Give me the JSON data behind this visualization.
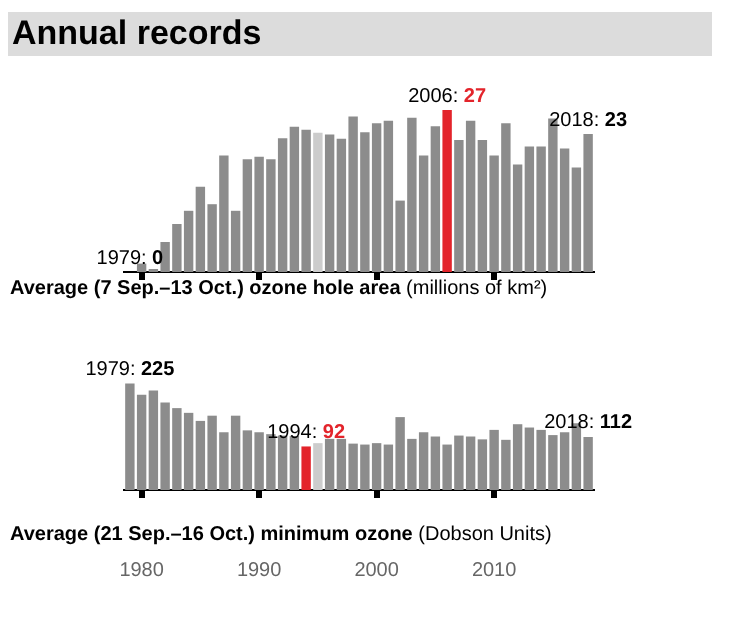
{
  "chart_data": [
    {
      "type": "bar",
      "title": "Annual records",
      "xlabel": "Average (7 Sep.–13 Oct.) ozone hole area (millions of km²)",
      "x": [
        1979,
        1980,
        1981,
        1982,
        1983,
        1984,
        1985,
        1986,
        1987,
        1988,
        1989,
        1990,
        1991,
        1992,
        1993,
        1994,
        1995,
        1996,
        1997,
        1998,
        1999,
        2000,
        2001,
        2002,
        2003,
        2004,
        2005,
        2006,
        2007,
        2008,
        2009,
        2010,
        2011,
        2012,
        2013,
        2014,
        2015,
        2016,
        2017,
        2018
      ],
      "values": [
        0,
        1.4,
        0.5,
        5,
        8,
        10.2,
        14.2,
        11.3,
        19.4,
        10.2,
        18.8,
        19.2,
        18.8,
        22.3,
        24.2,
        23.7,
        23.2,
        22.9,
        22.2,
        25.9,
        23.3,
        24.8,
        25.2,
        11.9,
        25.7,
        19.4,
        24.3,
        27,
        22,
        25.2,
        22,
        19.4,
        24.8,
        17.9,
        20.9,
        20.9,
        25.6,
        20.6,
        17.4,
        23
      ],
      "colors": [
        "#8c8c8c",
        "#8c8c8c",
        "#8c8c8c",
        "#8c8c8c",
        "#8c8c8c",
        "#8c8c8c",
        "#8c8c8c",
        "#8c8c8c",
        "#8c8c8c",
        "#8c8c8c",
        "#8c8c8c",
        "#8c8c8c",
        "#8c8c8c",
        "#8c8c8c",
        "#8c8c8c",
        "#8c8c8c",
        "#cccccc",
        "#8c8c8c",
        "#8c8c8c",
        "#8c8c8c",
        "#8c8c8c",
        "#8c8c8c",
        "#8c8c8c",
        "#8c8c8c",
        "#8c8c8c",
        "#8c8c8c",
        "#8c8c8c",
        "#e3242b",
        "#8c8c8c",
        "#8c8c8c",
        "#8c8c8c",
        "#8c8c8c",
        "#8c8c8c",
        "#8c8c8c",
        "#8c8c8c",
        "#8c8c8c",
        "#8c8c8c",
        "#8c8c8c",
        "#8c8c8c",
        "#8c8c8c"
      ],
      "value_labels": [
        "1979: 0",
        null,
        null,
        null,
        null,
        null,
        null,
        null,
        null,
        null,
        null,
        null,
        null,
        null,
        null,
        null,
        null,
        null,
        null,
        null,
        null,
        null,
        null,
        null,
        null,
        null,
        null,
        "2006: 27",
        null,
        null,
        null,
        null,
        null,
        null,
        null,
        null,
        null,
        null,
        null,
        "2018: 23"
      ],
      "xlim": [
        1978.5,
        2018.5
      ],
      "xticks": [
        1980,
        1990,
        2000,
        2010
      ],
      "tick_labels": false,
      "legend": false
    },
    {
      "type": "bar",
      "xlabel": "Average (21 Sep.–16 Oct.) minimum ozone (Dobson Units)",
      "x": [
        1979,
        1980,
        1981,
        1982,
        1983,
        1984,
        1985,
        1986,
        1987,
        1988,
        1989,
        1990,
        1991,
        1992,
        1993,
        1994,
        1995,
        1996,
        1997,
        1998,
        1999,
        2000,
        2001,
        2002,
        2003,
        2004,
        2005,
        2006,
        2007,
        2008,
        2009,
        2010,
        2011,
        2012,
        2013,
        2014,
        2015,
        2016,
        2017,
        2018
      ],
      "values": [
        225,
        201,
        210,
        185,
        173,
        163,
        146,
        157,
        122,
        157,
        126,
        122,
        118,
        115,
        114,
        92,
        99,
        108,
        108,
        98,
        96,
        99,
        96,
        154,
        108,
        122,
        113,
        96,
        115,
        113,
        107,
        127,
        106,
        139,
        132,
        127,
        116,
        122,
        141,
        112
      ],
      "colors": [
        "#8c8c8c",
        "#8c8c8c",
        "#8c8c8c",
        "#8c8c8c",
        "#8c8c8c",
        "#8c8c8c",
        "#8c8c8c",
        "#8c8c8c",
        "#8c8c8c",
        "#8c8c8c",
        "#8c8c8c",
        "#8c8c8c",
        "#8c8c8c",
        "#8c8c8c",
        "#8c8c8c",
        "#e3242b",
        "#cccccc",
        "#8c8c8c",
        "#8c8c8c",
        "#8c8c8c",
        "#8c8c8c",
        "#8c8c8c",
        "#8c8c8c",
        "#8c8c8c",
        "#8c8c8c",
        "#8c8c8c",
        "#8c8c8c",
        "#8c8c8c",
        "#8c8c8c",
        "#8c8c8c",
        "#8c8c8c",
        "#8c8c8c",
        "#8c8c8c",
        "#8c8c8c",
        "#8c8c8c",
        "#8c8c8c",
        "#8c8c8c",
        "#8c8c8c",
        "#8c8c8c",
        "#8c8c8c"
      ],
      "value_labels": [
        "1979: 225",
        null,
        null,
        null,
        null,
        null,
        null,
        null,
        null,
        null,
        null,
        null,
        null,
        null,
        null,
        "1994: 92",
        null,
        null,
        null,
        null,
        null,
        null,
        null,
        null,
        null,
        null,
        null,
        null,
        null,
        null,
        null,
        null,
        null,
        null,
        null,
        null,
        null,
        null,
        null,
        "2018: 112"
      ],
      "xlim": [
        1978.5,
        2018.5
      ],
      "xticks": [
        1980,
        1990,
        2000,
        2010
      ],
      "legend": false
    }
  ]
}
